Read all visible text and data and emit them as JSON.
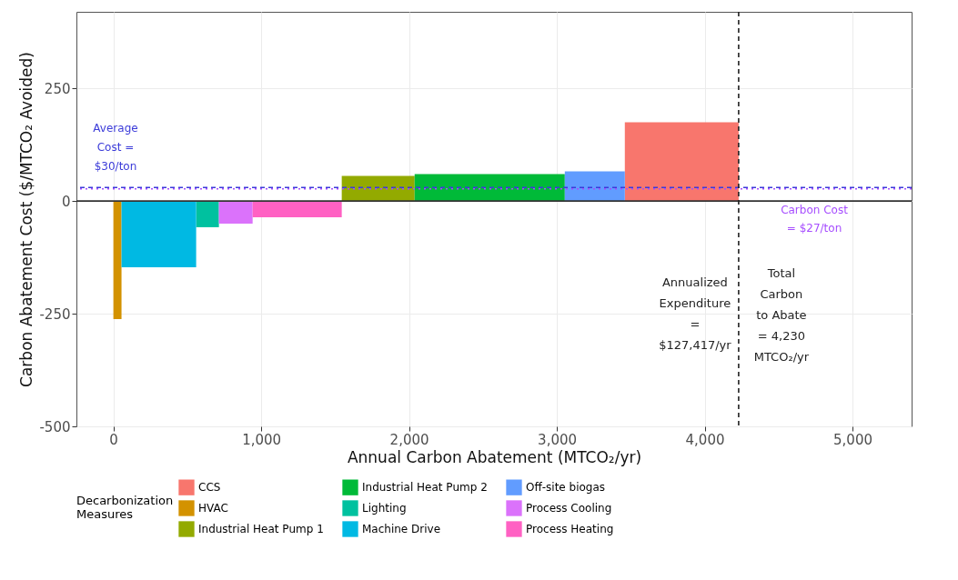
{
  "chart_data": {
    "type": "area",
    "xlabel": "Annual Carbon Abatement (MTCO₂/yr)",
    "ylabel": "Carbon Abatement Cost ($/MTCO₂ Avoided)",
    "legend_title": "Decarbonization Measures",
    "legend": "bottom",
    "grid": true,
    "xlim": [
      -250,
      5400
    ],
    "xticks": [
      0,
      {
        "value": 1000,
        "label": "1,000"
      },
      {
        "value": 2000,
        "label": "2,000"
      },
      {
        "value": 3000,
        "label": "3,000"
      },
      {
        "value": 4000,
        "label": "4,000"
      },
      {
        "value": 5000,
        "label": "5,000"
      }
    ],
    "ylim": [
      -500,
      420
    ],
    "yticks": [
      -500,
      -250,
      0,
      250
    ],
    "series": [
      {
        "name": "CCS",
        "color": "#f8766d",
        "x": [
          3460,
          4230
        ],
        "values": [
          175,
          175
        ]
      },
      {
        "name": "HVAC",
        "color": "#d39200",
        "x": [
          0,
          55
        ],
        "values": [
          -262,
          -262
        ]
      },
      {
        "name": "Industrial Heat Pump 1",
        "color": "#93aa00",
        "x": [
          1545,
          2038
        ],
        "values": [
          56,
          56
        ]
      },
      {
        "name": "Industrial Heat Pump 2",
        "color": "#00ba38",
        "x": [
          2038,
          3054
        ],
        "values": [
          60,
          60
        ]
      },
      {
        "name": "Lighting",
        "color": "#00c19f",
        "x": [
          560,
          714
        ],
        "values": [
          -58,
          -58
        ]
      },
      {
        "name": "Machine Drive",
        "color": "#00b9e3",
        "x": [
          55,
          560
        ],
        "values": [
          -147,
          -147
        ]
      },
      {
        "name": "Off-site biogas",
        "color": "#619cff",
        "x": [
          3054,
          3460
        ],
        "values": [
          66,
          66
        ]
      },
      {
        "name": "Process Cooling",
        "color": "#db72fb",
        "x": [
          714,
          942
        ],
        "values": [
          -50,
          -50
        ]
      },
      {
        "name": "Process Heating",
        "color": "#ff61c3",
        "x": [
          942,
          1545
        ],
        "values": [
          -36,
          -36
        ]
      }
    ],
    "ref_lines": [
      {
        "axis": "y",
        "value": 30,
        "label": "Average Cost = $30/ton",
        "color": "#3b3bd9",
        "line_style": "dashed"
      },
      {
        "axis": "y",
        "value": 27,
        "label": "Carbon Cost = $27/ton",
        "color": "#a64dff",
        "line_style": "dotted"
      },
      {
        "axis": "y",
        "value": 0,
        "color": "#333333",
        "line_style": "solid"
      },
      {
        "axis": "x",
        "value": 4230,
        "label": "Total Carbon to Abate = 4,230 MTCO₂/yr",
        "color": "#222222",
        "line_style": "dashed"
      }
    ],
    "annotations": [
      "Annualized Expenditure = $127,417/yr"
    ]
  }
}
